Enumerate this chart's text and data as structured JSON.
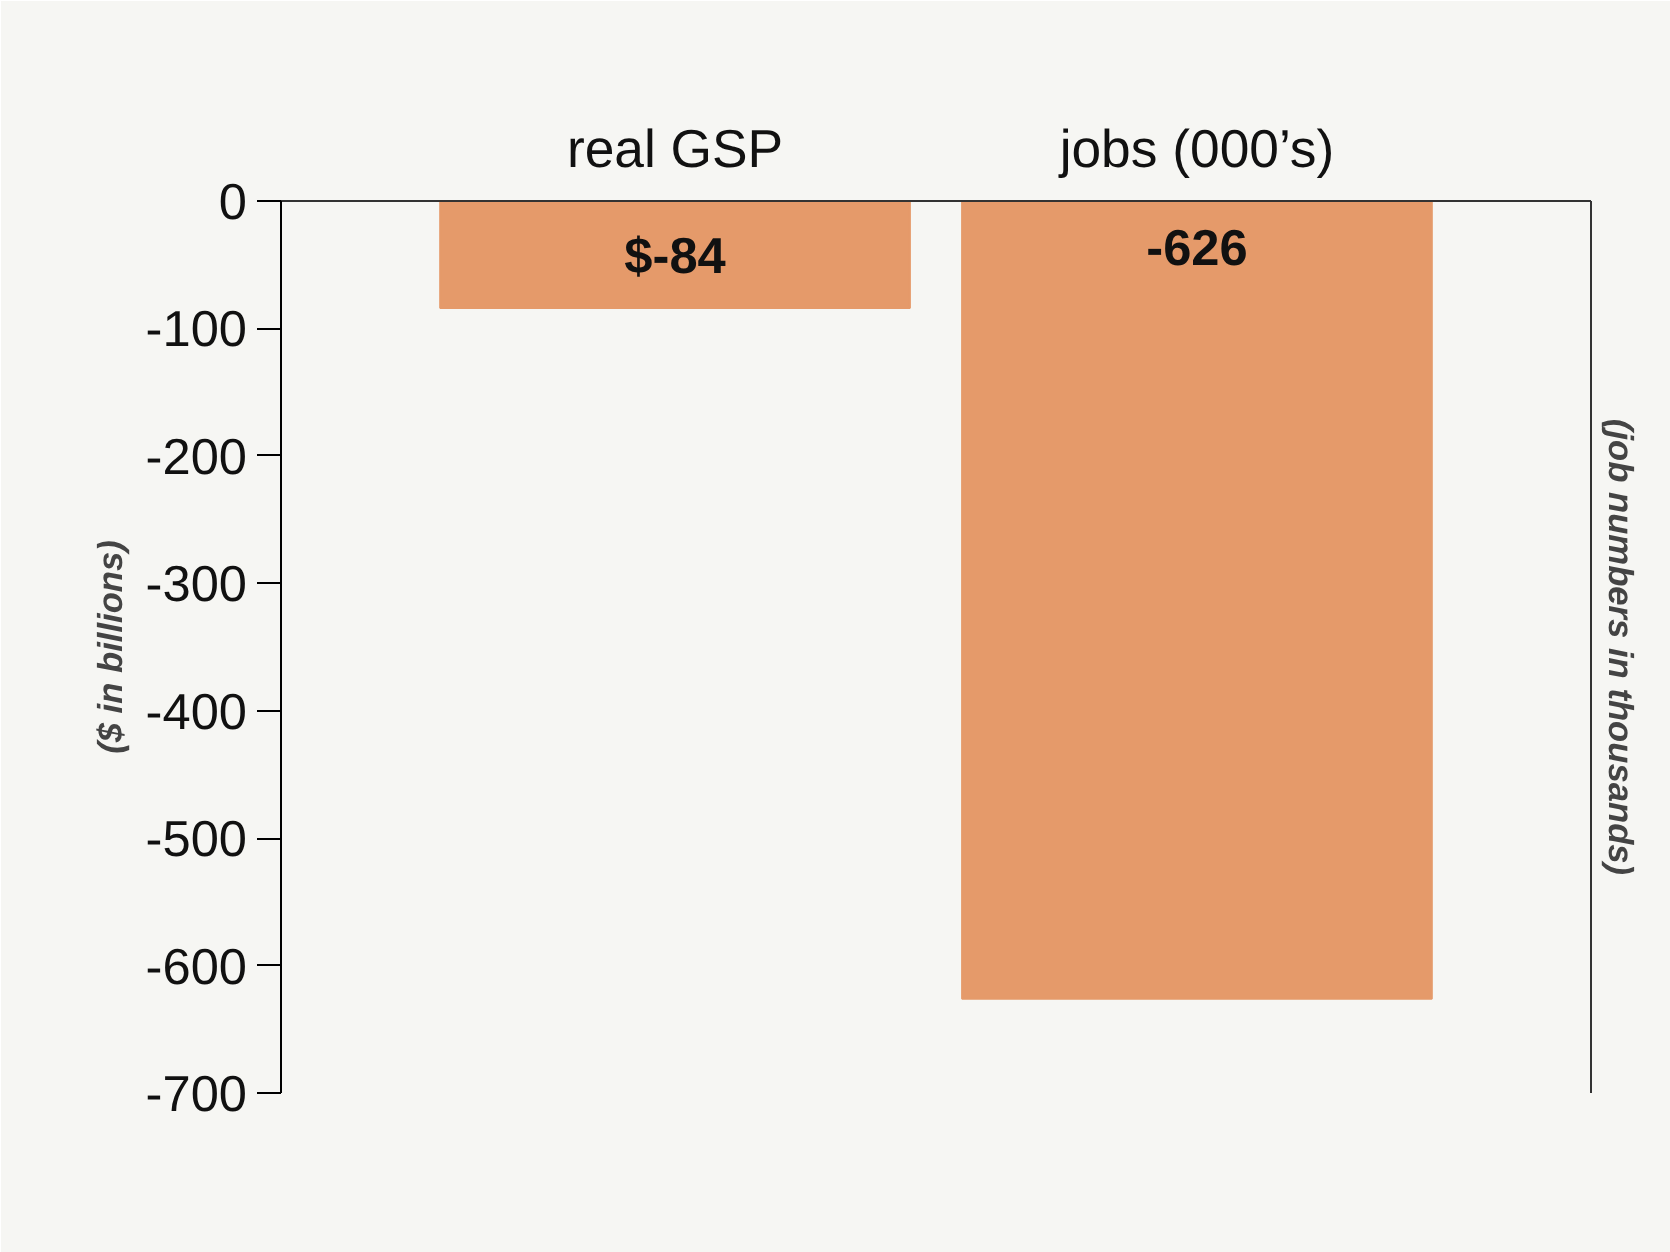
{
  "chart_data": {
    "type": "bar",
    "categories": [
      "real GSP",
      "jobs (000’s)"
    ],
    "values": [
      -84,
      -626
    ],
    "value_labels": [
      "$-84",
      "-626"
    ],
    "colors": [
      "#e59a6a",
      "#e59a6a"
    ],
    "ylabel": "($ in billions)",
    "y2label": "(job numbers in thousands)",
    "ylim": [
      -700,
      0
    ],
    "yticks": [
      -700,
      -600,
      -500,
      -400,
      -300,
      -200,
      -100,
      0
    ],
    "grid": false
  }
}
